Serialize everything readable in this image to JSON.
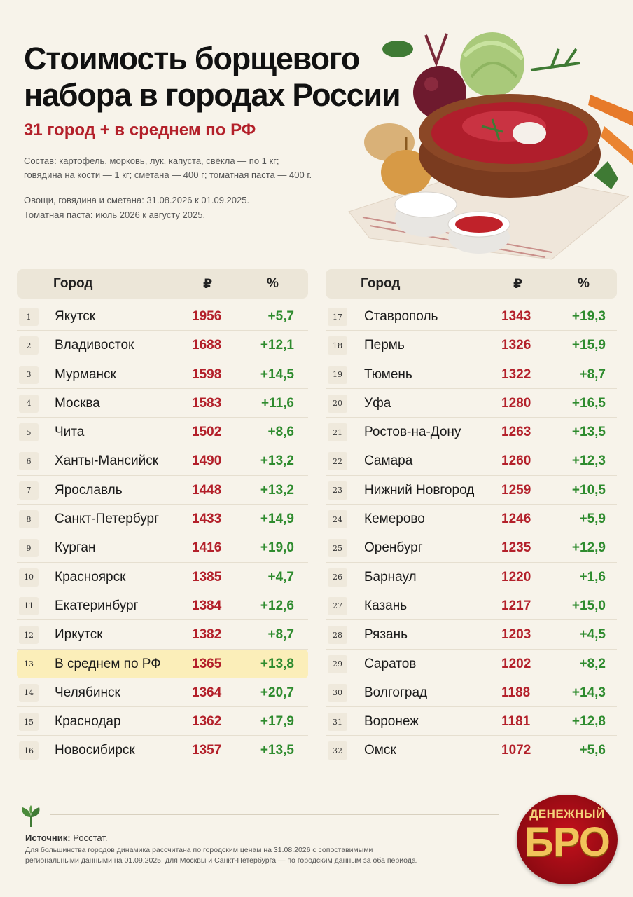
{
  "header": {
    "title_line1": "Стоимость борщевого",
    "title_line2": "набора в городах России",
    "subtitle": "31 город + в среднем по РФ",
    "composition_line1": "Состав: картофель, морковь, лук, капуста, свёкла — по 1 кг;",
    "composition_line2": "говядина на кости — 1 кг; сметана — 400 г; томатная паста — 400 г.",
    "period_line1": "Овощи, говядина и сметана: 31.08.2026 к 01.09.2025.",
    "period_line2": "Томатная паста: июль 2026 к августу 2025."
  },
  "table_headers": {
    "city": "Город",
    "rub": "₽",
    "pct": "%"
  },
  "left_rows": [
    {
      "n": "1",
      "city": "Якутск",
      "price": "1956",
      "pct": "+5,7"
    },
    {
      "n": "2",
      "city": "Владивосток",
      "price": "1688",
      "pct": "+12,1"
    },
    {
      "n": "3",
      "city": "Мурманск",
      "price": "1598",
      "pct": "+14,5"
    },
    {
      "n": "4",
      "city": "Москва",
      "price": "1583",
      "pct": "+11,6"
    },
    {
      "n": "5",
      "city": "Чита",
      "price": "1502",
      "pct": "+8,6"
    },
    {
      "n": "6",
      "city": "Ханты-Мансийск",
      "price": "1490",
      "pct": "+13,2"
    },
    {
      "n": "7",
      "city": "Ярославль",
      "price": "1448",
      "pct": "+13,2"
    },
    {
      "n": "8",
      "city": "Санкт-Петербург",
      "price": "1433",
      "pct": "+14,9"
    },
    {
      "n": "9",
      "city": "Курган",
      "price": "1416",
      "pct": "+19,0"
    },
    {
      "n": "10",
      "city": "Красноярск",
      "price": "1385",
      "pct": "+4,7"
    },
    {
      "n": "11",
      "city": "Екатеринбург",
      "price": "1384",
      "pct": "+12,6"
    },
    {
      "n": "12",
      "city": "Иркутск",
      "price": "1382",
      "pct": "+8,7"
    },
    {
      "n": "13",
      "city": "В среднем по РФ",
      "price": "1365",
      "pct": "+13,8"
    },
    {
      "n": "14",
      "city": "Челябинск",
      "price": "1364",
      "pct": "+20,7"
    },
    {
      "n": "15",
      "city": "Краснодар",
      "price": "1362",
      "pct": "+17,9"
    },
    {
      "n": "16",
      "city": "Новосибирск",
      "price": "1357",
      "pct": "+13,5"
    }
  ],
  "right_rows": [
    {
      "n": "17",
      "city": "Ставрополь",
      "price": "1343",
      "pct": "+19,3"
    },
    {
      "n": "18",
      "city": "Пермь",
      "price": "1326",
      "pct": "+15,9"
    },
    {
      "n": "19",
      "city": "Тюмень",
      "price": "1322",
      "pct": "+8,7"
    },
    {
      "n": "20",
      "city": "Уфа",
      "price": "1280",
      "pct": "+16,5"
    },
    {
      "n": "21",
      "city": "Ростов-на-Дону",
      "price": "1263",
      "pct": "+13,5"
    },
    {
      "n": "22",
      "city": "Самара",
      "price": "1260",
      "pct": "+12,3"
    },
    {
      "n": "23",
      "city": "Нижний Новгород",
      "price": "1259",
      "pct": "+10,5"
    },
    {
      "n": "24",
      "city": "Кемерово",
      "price": "1246",
      "pct": "+5,9"
    },
    {
      "n": "25",
      "city": "Оренбург",
      "price": "1235",
      "pct": "+12,9"
    },
    {
      "n": "26",
      "city": "Барнаул",
      "price": "1220",
      "pct": "+1,6"
    },
    {
      "n": "27",
      "city": "Казань",
      "price": "1217",
      "pct": "+15,0"
    },
    {
      "n": "28",
      "city": "Рязань",
      "price": "1203",
      "pct": "+4,5"
    },
    {
      "n": "29",
      "city": "Саратов",
      "price": "1202",
      "pct": "+8,2"
    },
    {
      "n": "30",
      "city": "Волгоград",
      "price": "1188",
      "pct": "+14,3"
    },
    {
      "n": "31",
      "city": "Воронеж",
      "price": "1181",
      "pct": "+12,8"
    },
    {
      "n": "32",
      "city": "Омск",
      "price": "1072",
      "pct": "+5,6"
    }
  ],
  "highlight_row": "13",
  "footer": {
    "source_label": "Источник:",
    "source_value": "Росстат.",
    "footnote_line1": "Для большинства городов динамика рассчитана по городским ценам на 31.08.2026 с сопоставимыми",
    "footnote_line2": "региональными данными на 01.09.2025; для Москвы и Санкт-Петербурга — по городским данным за оба периода."
  },
  "logo": {
    "line1": "ДЕНЕЖНЫЙ",
    "line2": "БРО"
  },
  "colors": {
    "price": "#b3202a",
    "pct": "#2e8b2e",
    "highlight": "#fbeeb9",
    "background": "#f7f3ea"
  }
}
